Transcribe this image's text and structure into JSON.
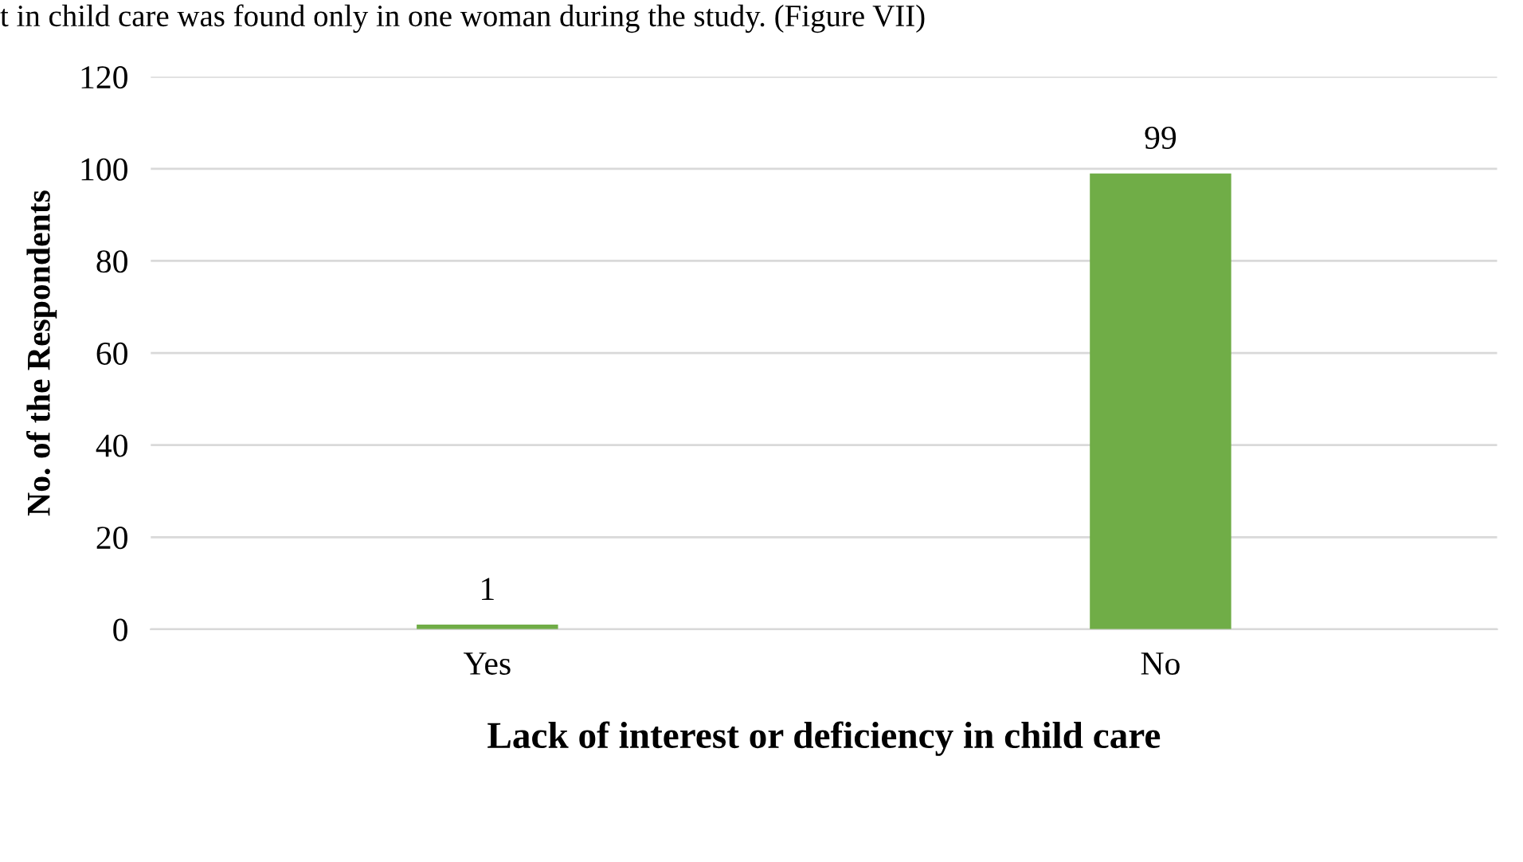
{
  "chart_data": {
    "type": "bar",
    "categories": [
      "Yes",
      "No"
    ],
    "values": [
      1,
      99
    ],
    "color": "#70ad47",
    "ylim": [
      0,
      120
    ],
    "yticks": [
      0,
      20,
      40,
      60,
      80,
      100,
      120
    ],
    "grid": "y",
    "data_labels": true,
    "legend": false,
    "xlabel": "Lack of interest or deficiency in child care",
    "ylabel": "No. of the Respondents",
    "annotations": [
      "t in child care was found only in one woman during the study. (Figure VII)"
    ]
  }
}
